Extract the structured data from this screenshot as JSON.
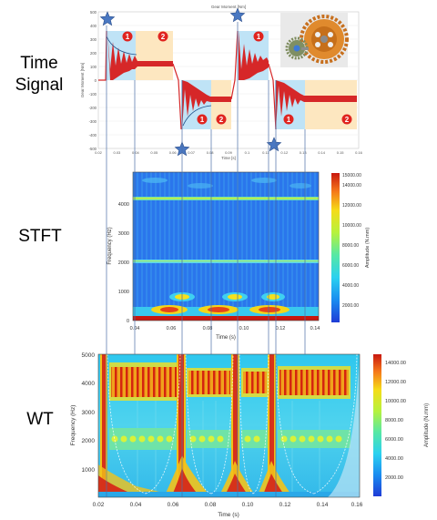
{
  "labels": {
    "time_signal_line1": "Time",
    "time_signal_line2": "Signal",
    "stft": "STFT",
    "wt": "WT"
  },
  "time_signal": {
    "title": "Gear Moment [Nm]",
    "ylabel": "Gear Moment [Nm]",
    "xlabel": "Time [s]",
    "yticks": [
      "500",
      "400",
      "300",
      "200",
      "100",
      "0",
      "-100",
      "-200",
      "-300",
      "-400",
      "-500"
    ],
    "xticks": [
      "0.02",
      "0.03",
      "0.04",
      "0.05",
      "0.06",
      "0.07",
      "0.08",
      "0.09",
      "0.1",
      "0.11",
      "0.12",
      "0.13",
      "0.14",
      "0.15",
      "0.16"
    ],
    "badges": [
      "1",
      "2",
      "1",
      "2",
      "1",
      "1",
      "2"
    ],
    "colors": {
      "signal": "#d62728",
      "zone1": "#bfe3f6",
      "zone2": "#fde7c0",
      "star": "#4a78c2",
      "badge": "#e0241f"
    }
  },
  "stft": {
    "ylabel": "Frequency (Hz)",
    "xlabel": "Time (s)",
    "yticks": [
      "4000",
      "3000",
      "2000",
      "1000",
      "0"
    ],
    "xticks": [
      "0.04",
      "0.06",
      "0.08",
      "0.10",
      "0.12",
      "0.14"
    ],
    "colorbar_label": "Amplitude (N.mm)",
    "colorbar_ticks": [
      "15000.00",
      "14000.00",
      "12000.00",
      "10000.00",
      "8000.00",
      "6000.00",
      "4000.00",
      "2000.00"
    ]
  },
  "wt": {
    "ylabel": "Frequency (Hz)",
    "xlabel": "Time (s)",
    "yticks": [
      "5000",
      "4000",
      "3000",
      "2000",
      "1000"
    ],
    "xticks": [
      "0.02",
      "0.04",
      "0.06",
      "0.08",
      "0.10",
      "0.12",
      "0.14",
      "0.16"
    ],
    "colorbar_label": "Amplitude (N.mm)",
    "colorbar_ticks": [
      "14000.00",
      "12000.00",
      "10000.00",
      "8000.00",
      "6000.00",
      "4000.00",
      "2000.00"
    ]
  }
}
